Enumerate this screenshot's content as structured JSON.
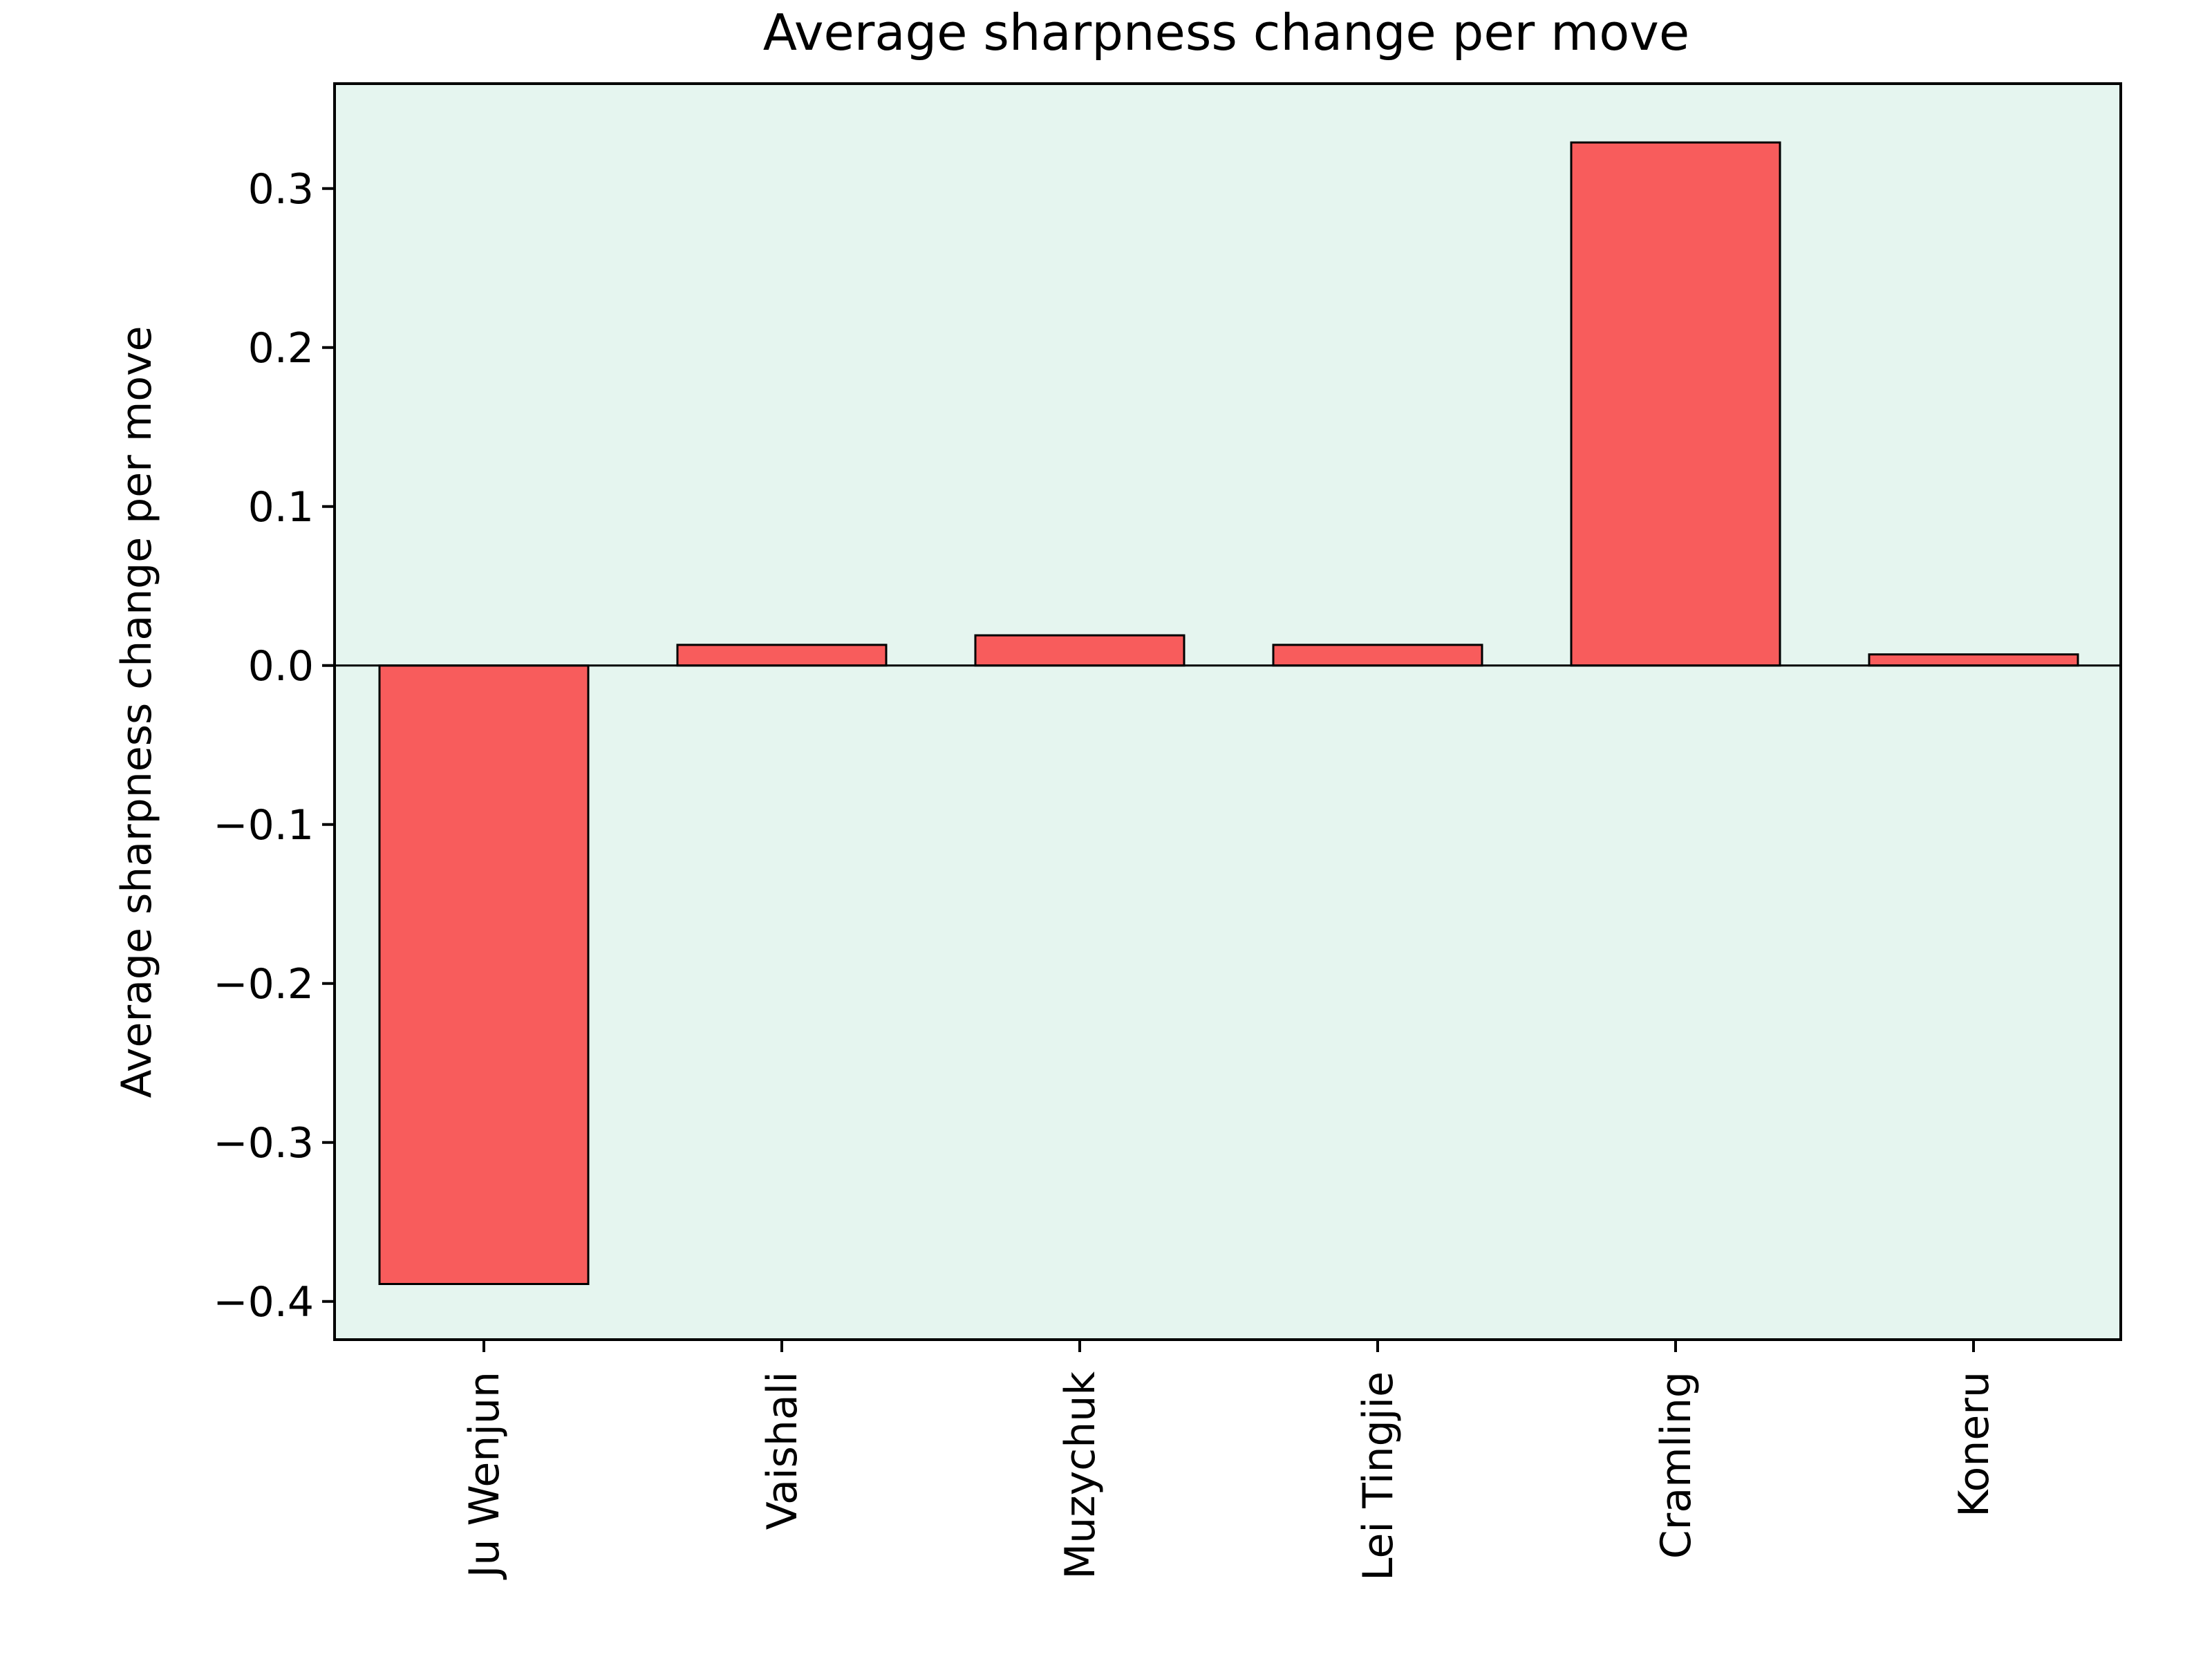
{
  "chart_data": {
    "type": "bar",
    "title": "Average sharpness change per move",
    "xlabel": "",
    "ylabel": "Average sharpness change per move",
    "categories": [
      "Ju Wenjun",
      "Vaishali",
      "Muzychuk",
      "Lei Tingjie",
      "Cramling",
      "Koneru"
    ],
    "values": [
      -0.389,
      0.013,
      0.019,
      0.013,
      0.329,
      0.007
    ],
    "ylim": [
      -0.424,
      0.366
    ],
    "yticks": [
      -0.4,
      -0.3,
      -0.2,
      -0.1,
      0.0,
      0.1,
      0.2,
      0.3
    ],
    "ytick_labels": [
      "−0.4",
      "−0.3",
      "−0.2",
      "−0.1",
      "0.0",
      "0.1",
      "0.2",
      "0.3"
    ],
    "grid": false,
    "zero_line": true,
    "colors": {
      "bar_fill": "#f85c5c",
      "bar_edge": "#000000",
      "plot_background": "#e5f5ef",
      "axis": "#000000"
    }
  }
}
